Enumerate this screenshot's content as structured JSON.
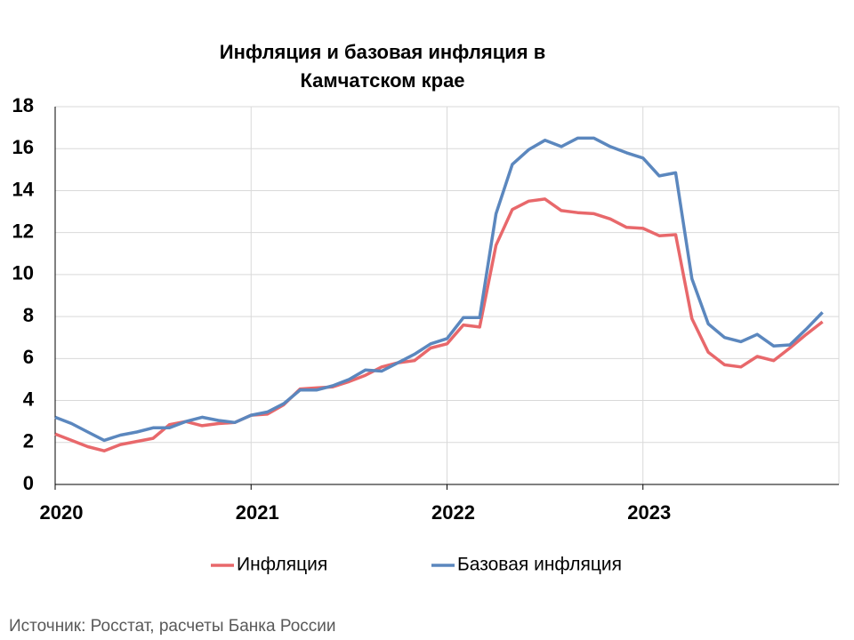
{
  "chart_data": {
    "type": "line",
    "title": [
      "Инфляция и базовая инфляция в",
      "Камчатском крае"
    ],
    "categories": [
      "2020",
      null,
      null,
      null,
      null,
      null,
      null,
      null,
      null,
      null,
      null,
      null,
      "2021",
      null,
      null,
      null,
      null,
      null,
      null,
      null,
      null,
      null,
      null,
      null,
      "2022",
      null,
      null,
      null,
      null,
      null,
      null,
      null,
      null,
      null,
      null,
      null,
      "2023",
      null,
      null,
      null,
      null,
      null,
      null,
      null,
      null,
      null,
      null,
      null
    ],
    "series": [
      {
        "name": "Инфляция",
        "color": "#e8686b",
        "values": [
          2.4,
          2.1,
          1.8,
          1.6,
          1.9,
          2.05,
          2.2,
          2.85,
          3.0,
          2.8,
          2.9,
          2.95,
          3.3,
          3.35,
          3.8,
          4.55,
          4.6,
          4.65,
          4.9,
          5.2,
          5.6,
          5.8,
          5.9,
          6.5,
          6.7,
          7.6,
          7.5,
          11.4,
          13.1,
          13.5,
          13.6,
          13.05,
          12.95,
          12.9,
          12.65,
          12.25,
          12.2,
          11.85,
          11.9,
          7.9,
          6.3,
          5.7,
          5.6,
          6.1,
          5.9,
          6.5,
          7.15,
          7.75
        ]
      },
      {
        "name": "Базовая инфляция",
        "color": "#5b87be",
        "values": [
          3.2,
          2.9,
          2.5,
          2.1,
          2.35,
          2.5,
          2.7,
          2.7,
          3.0,
          3.2,
          3.05,
          2.95,
          3.3,
          3.45,
          3.85,
          4.5,
          4.5,
          4.7,
          5.0,
          5.45,
          5.4,
          5.8,
          6.2,
          6.7,
          6.95,
          7.95,
          7.95,
          12.9,
          15.25,
          15.95,
          16.4,
          16.1,
          16.5,
          16.5,
          16.1,
          15.8,
          15.55,
          14.7,
          14.85,
          9.8,
          7.65,
          7.0,
          6.8,
          7.15,
          6.6,
          6.65,
          7.4,
          8.2
        ]
      }
    ],
    "ylim": [
      0,
      18
    ],
    "yticks": [
      0,
      2,
      4,
      6,
      8,
      10,
      12,
      14,
      16,
      18
    ],
    "grid": true,
    "legend": "bottom",
    "source": "Источник: Росстат, расчеты Банка России"
  }
}
